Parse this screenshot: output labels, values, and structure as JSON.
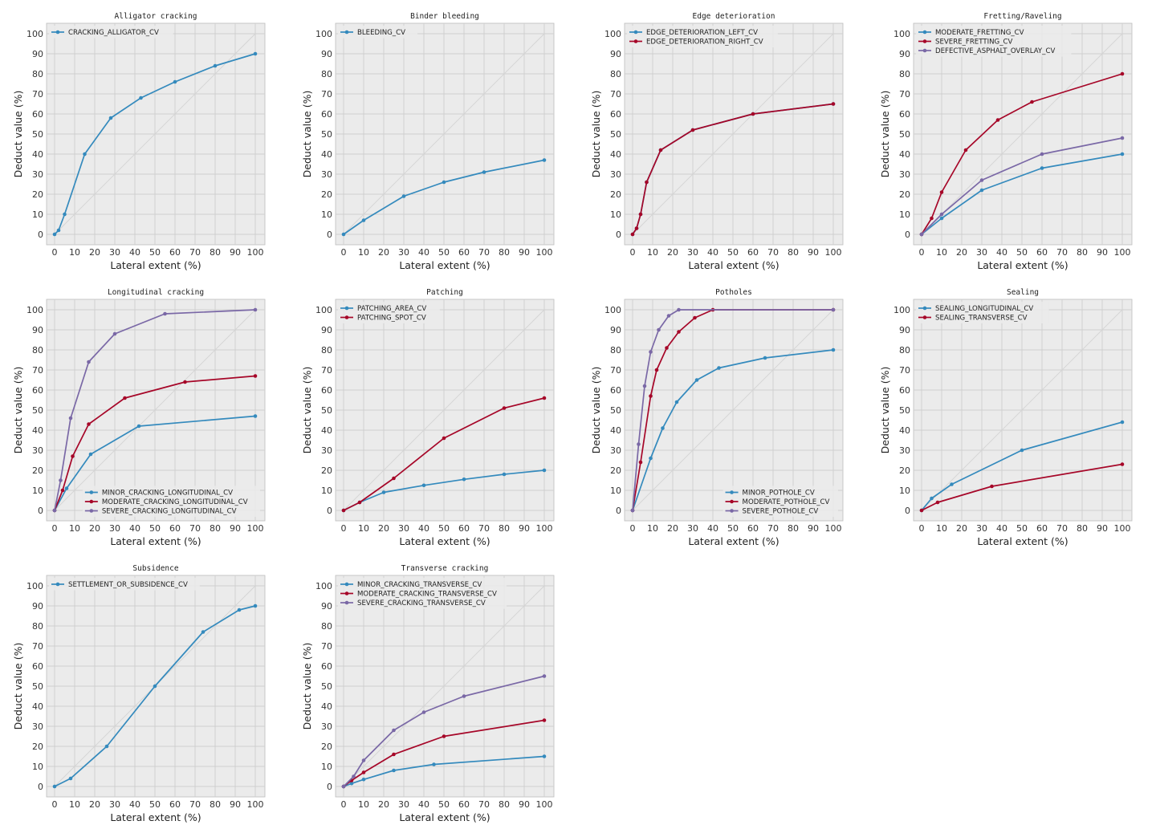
{
  "figure": {
    "xlabel": "Lateral extent (%)",
    "ylabel": "Deduct value (%)",
    "ticks": [
      "0",
      "10",
      "20",
      "30",
      "40",
      "50",
      "60",
      "70",
      "80",
      "90",
      "100"
    ]
  },
  "colors": {
    "blue": "#348ABD",
    "red": "#A60628",
    "purple": "#7A68A6",
    "panel_bg": "#EBEBEB",
    "grid": "#CFCFCF"
  },
  "chart_data": [
    {
      "type": "line",
      "title": "Alligator cracking",
      "xlabel": "Lateral extent (%)",
      "ylabel": "Deduct value (%)",
      "xlim": [
        0,
        100
      ],
      "ylim": [
        0,
        100
      ],
      "grid": true,
      "legend": "top-left",
      "series": [
        {
          "name": "CRACKING_ALLIGATOR_CV",
          "color": "#348ABD",
          "x": [
            0,
            2,
            5,
            15,
            28,
            43,
            60,
            80,
            100
          ],
          "y": [
            0,
            2,
            10,
            40,
            58,
            68,
            76,
            84,
            90
          ]
        }
      ]
    },
    {
      "type": "line",
      "title": "Binder bleeding",
      "xlabel": "Lateral extent (%)",
      "ylabel": "Deduct value (%)",
      "xlim": [
        0,
        100
      ],
      "ylim": [
        0,
        100
      ],
      "grid": true,
      "legend": "top-left",
      "series": [
        {
          "name": "BLEEDING_CV",
          "color": "#348ABD",
          "x": [
            0,
            10,
            30,
            50,
            70,
            100
          ],
          "y": [
            0,
            7,
            19,
            26,
            31,
            37
          ]
        }
      ]
    },
    {
      "type": "line",
      "title": "Edge deterioration",
      "xlabel": "Lateral extent (%)",
      "ylabel": "Deduct value (%)",
      "xlim": [
        0,
        100
      ],
      "ylim": [
        0,
        100
      ],
      "grid": true,
      "legend": "top-left",
      "series": [
        {
          "name": "EDGE_DETERIORATION_LEFT_CV",
          "color": "#348ABD",
          "x": [
            0,
            2,
            4,
            7,
            14,
            30,
            60,
            100
          ],
          "y": [
            0,
            3,
            10,
            26,
            42,
            52,
            60,
            65
          ]
        },
        {
          "name": "EDGE_DETERIORATION_RIGHT_CV",
          "color": "#A60628",
          "x": [
            0,
            2,
            4,
            7,
            14,
            30,
            60,
            100
          ],
          "y": [
            0,
            3,
            10,
            26,
            42,
            52,
            60,
            65
          ]
        }
      ]
    },
    {
      "type": "line",
      "title": "Fretting/Raveling",
      "xlabel": "Lateral extent (%)",
      "ylabel": "Deduct value (%)",
      "xlim": [
        0,
        100
      ],
      "ylim": [
        0,
        100
      ],
      "grid": true,
      "legend": "top-left",
      "series": [
        {
          "name": "MODERATE_FRETTING_CV",
          "color": "#348ABD",
          "x": [
            0,
            10,
            30,
            60,
            100
          ],
          "y": [
            0,
            8,
            22,
            33,
            40
          ]
        },
        {
          "name": "SEVERE_FRETTING_CV",
          "color": "#A60628",
          "x": [
            0,
            5,
            10,
            22,
            38,
            55,
            100
          ],
          "y": [
            0,
            8,
            21,
            42,
            57,
            66,
            80
          ]
        },
        {
          "name": "DEFECTIVE_ASPHALT_OVERLAY_CV",
          "color": "#7A68A6",
          "x": [
            0,
            10,
            30,
            60,
            100
          ],
          "y": [
            0,
            10,
            27,
            40,
            48
          ]
        }
      ]
    },
    {
      "type": "line",
      "title": "Longitudinal cracking",
      "xlabel": "Lateral extent (%)",
      "ylabel": "Deduct value (%)",
      "xlim": [
        0,
        100
      ],
      "ylim": [
        0,
        100
      ],
      "grid": true,
      "legend": "bottom-right",
      "series": [
        {
          "name": "MINOR_CRACKING_LONGITUDINAL_CV",
          "color": "#348ABD",
          "x": [
            0,
            6,
            18,
            42,
            100
          ],
          "y": [
            0,
            11,
            28,
            42,
            47
          ]
        },
        {
          "name": "MODERATE_CRACKING_LONGITUDINAL_CV",
          "color": "#A60628",
          "x": [
            0,
            4,
            9,
            17,
            35,
            65,
            100
          ],
          "y": [
            0,
            10,
            27,
            43,
            56,
            64,
            67
          ]
        },
        {
          "name": "SEVERE_CRACKING_LONGITUDINAL_CV",
          "color": "#7A68A6",
          "x": [
            0,
            3,
            8,
            17,
            30,
            55,
            100
          ],
          "y": [
            0,
            15,
            46,
            74,
            88,
            98,
            100
          ]
        }
      ]
    },
    {
      "type": "line",
      "title": "Patching",
      "xlabel": "Lateral extent (%)",
      "ylabel": "Deduct value (%)",
      "xlim": [
        0,
        100
      ],
      "ylim": [
        0,
        100
      ],
      "grid": true,
      "legend": "top-left",
      "series": [
        {
          "name": "PATCHING_AREA_CV",
          "color": "#348ABD",
          "x": [
            0,
            8,
            20,
            40,
            60,
            80,
            100
          ],
          "y": [
            0,
            4,
            9,
            12.5,
            15.5,
            18,
            20
          ]
        },
        {
          "name": "PATCHING_SPOT_CV",
          "color": "#A60628",
          "x": [
            0,
            8,
            25,
            50,
            80,
            100
          ],
          "y": [
            0,
            4,
            16,
            36,
            51,
            56
          ]
        }
      ]
    },
    {
      "type": "line",
      "title": "Potholes",
      "xlabel": "Lateral extent (%)",
      "ylabel": "Deduct value (%)",
      "xlim": [
        0,
        100
      ],
      "ylim": [
        0,
        100
      ],
      "grid": true,
      "legend": "bottom-right",
      "series": [
        {
          "name": "MINOR_POTHOLE_CV",
          "color": "#348ABD",
          "x": [
            0,
            9,
            15,
            22,
            32,
            43,
            66,
            100
          ],
          "y": [
            0,
            26,
            41,
            54,
            65,
            71,
            76,
            80
          ]
        },
        {
          "name": "MODERATE_POTHOLE_CV",
          "color": "#A60628",
          "x": [
            0,
            4,
            9,
            12,
            17,
            23,
            31,
            40,
            100
          ],
          "y": [
            0,
            24,
            57,
            70,
            81,
            89,
            96,
            100,
            100
          ]
        },
        {
          "name": "SEVERE_POTHOLE_CV",
          "color": "#7A68A6",
          "x": [
            0,
            3,
            6,
            9,
            13,
            18,
            23,
            100
          ],
          "y": [
            0,
            33,
            62,
            79,
            90,
            97,
            100,
            100
          ]
        }
      ]
    },
    {
      "type": "line",
      "title": "Sealing",
      "xlabel": "Lateral extent (%)",
      "ylabel": "Deduct value (%)",
      "xlim": [
        0,
        100
      ],
      "ylim": [
        0,
        100
      ],
      "grid": true,
      "legend": "top-left",
      "series": [
        {
          "name": "SEALING_LONGITUDINAL_CV",
          "color": "#348ABD",
          "x": [
            0,
            5,
            15,
            50,
            100
          ],
          "y": [
            0,
            6,
            13,
            30,
            44
          ]
        },
        {
          "name": "SEALING_TRANSVERSE_CV",
          "color": "#A60628",
          "x": [
            0,
            8,
            35,
            100
          ],
          "y": [
            0,
            4,
            12,
            23
          ]
        }
      ]
    },
    {
      "type": "line",
      "title": "Subsidence",
      "xlabel": "Lateral extent (%)",
      "ylabel": "Deduct value (%)",
      "xlim": [
        0,
        100
      ],
      "ylim": [
        0,
        100
      ],
      "grid": true,
      "legend": "top-left",
      "series": [
        {
          "name": "SETTLEMENT_OR_SUBSIDENCE_CV",
          "color": "#348ABD",
          "x": [
            0,
            8,
            26,
            50,
            74,
            92,
            100
          ],
          "y": [
            0,
            4,
            20,
            50,
            77,
            88,
            90
          ]
        }
      ]
    },
    {
      "type": "line",
      "title": "Transverse cracking",
      "xlabel": "Lateral extent (%)",
      "ylabel": "Deduct value (%)",
      "xlim": [
        0,
        100
      ],
      "ylim": [
        0,
        100
      ],
      "grid": true,
      "legend": "top-left",
      "series": [
        {
          "name": "MINOR_CRACKING_TRANSVERSE_CV",
          "color": "#348ABD",
          "x": [
            0,
            4,
            10,
            25,
            45,
            100
          ],
          "y": [
            0,
            1.5,
            3.5,
            8,
            11,
            15
          ]
        },
        {
          "name": "MODERATE_CRACKING_TRANSVERSE_CV",
          "color": "#A60628",
          "x": [
            0,
            4,
            10,
            25,
            50,
            100
          ],
          "y": [
            0,
            3,
            7,
            16,
            25,
            33
          ]
        },
        {
          "name": "SEVERE_CRACKING_TRANSVERSE_CV",
          "color": "#7A68A6",
          "x": [
            0,
            5,
            10,
            25,
            40,
            60,
            100
          ],
          "y": [
            0,
            5,
            13,
            28,
            37,
            45,
            55
          ]
        }
      ]
    }
  ]
}
